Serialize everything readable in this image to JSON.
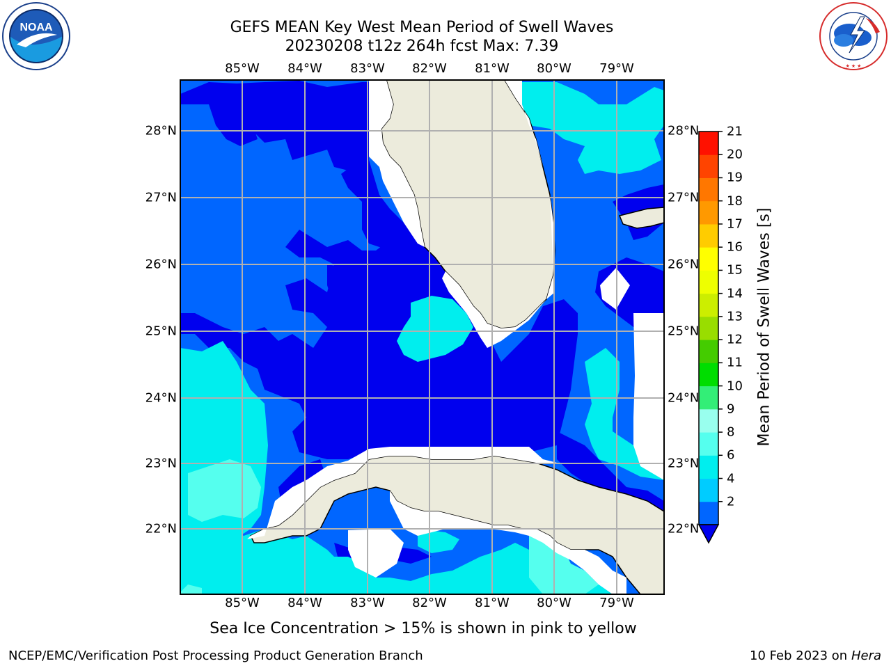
{
  "title": {
    "line1": "GEFS MEAN Key West Mean Period of Swell Waves",
    "line2": "20230208 t12z 264h fcst   Max: 7.39"
  },
  "logos": {
    "left": "noaa-logo",
    "right": "national-weather-service-logo",
    "left_text": "NOAA",
    "right_text": "NATIONAL WEATHER SERVICE"
  },
  "map": {
    "lon_ticks": [
      "85°W",
      "84°W",
      "83°W",
      "82°W",
      "81°W",
      "80°W",
      "79°W"
    ],
    "lat_ticks": [
      "28°N",
      "27°N",
      "26°N",
      "25°N",
      "24°N",
      "23°N",
      "22°N"
    ],
    "land_color": "#ecebdc",
    "grid_color": "#b0b0b0"
  },
  "colorbar": {
    "label": "Mean Period of Swell Waves [s]",
    "ticks": [
      "21",
      "20",
      "19",
      "18",
      "17",
      "16",
      "15",
      "14",
      "13",
      "12",
      "11",
      "10",
      "9",
      "8",
      "6",
      "4",
      "2"
    ],
    "colors_bottom_to_top": [
      "#0066ff",
      "#00ccff",
      "#00eeee",
      "#55ffee",
      "#99ffee",
      "#33ee77",
      "#00dd00",
      "#44cc00",
      "#99dd00",
      "#ccee00",
      "#eeff00",
      "#ffff00",
      "#ffcc00",
      "#ff9900",
      "#ff7700",
      "#ff4400",
      "#ff1100"
    ],
    "extend_color": "#0000ee"
  },
  "chart_data": {
    "type": "heatmap",
    "variable": "Mean Period of Swell Waves",
    "unit": "s",
    "model": "GEFS MEAN",
    "region": "Key West",
    "run": "20230208 t12z",
    "forecast_hour": 264,
    "max_value": 7.39,
    "lon_range": [
      -86.0,
      -78.3
    ],
    "lat_range": [
      21.0,
      28.8
    ],
    "levels": [
      2,
      4,
      6,
      8,
      9,
      10,
      11,
      12,
      13,
      14,
      15,
      16,
      17,
      18,
      19,
      20,
      21
    ]
  },
  "note": "Sea Ice Concentration > 15% is shown in pink to yellow",
  "footer": {
    "left": "NCEP/EMC/Verification Post Processing Product Generation Branch",
    "right_date": "10 Feb 2023 on",
    "right_host": "Hera"
  }
}
